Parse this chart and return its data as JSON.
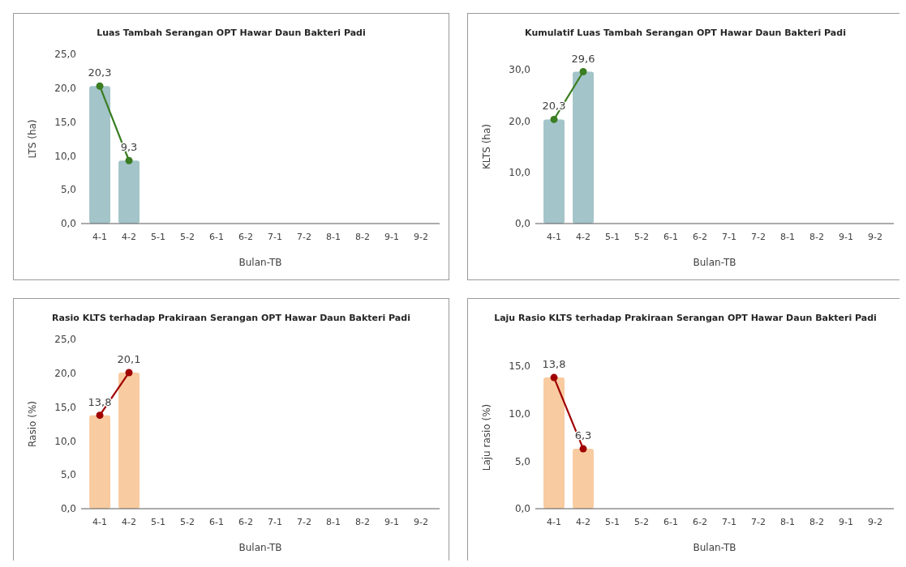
{
  "chart_data": [
    {
      "type": "bar",
      "title": "Luas Tambah Serangan OPT Hawar Daun Bakteri Padi",
      "xlabel": "Bulan-TB",
      "ylabel": "LTS (ha)",
      "categories": [
        "4-1",
        "4-2",
        "5-1",
        "5-2",
        "6-1",
        "6-2",
        "7-1",
        "7-2",
        "8-1",
        "8-2",
        "9-1",
        "9-2"
      ],
      "ylim": [
        0,
        25
      ],
      "yticks": [
        {
          "value": 0,
          "label": "0,0"
        },
        {
          "value": 5,
          "label": "5,0"
        },
        {
          "value": 10,
          "label": "10,0"
        },
        {
          "value": 15,
          "label": "15,0"
        },
        {
          "value": 20,
          "label": "20,0"
        },
        {
          "value": 25,
          "label": "25,0"
        }
      ],
      "grid": false,
      "marker": "circle",
      "series": [
        {
          "color": "#a3c4c9",
          "values": [
            20.3,
            9.3,
            null,
            null,
            null,
            null,
            null,
            null,
            null,
            null,
            null,
            null
          ]
        },
        {
          "type": "line",
          "color": "#3a7d22",
          "values": [
            20.3,
            9.3,
            null,
            null,
            null,
            null,
            null,
            null,
            null,
            null,
            null,
            null
          ],
          "value_labels": [
            "20,3",
            "9,3",
            null,
            null,
            null,
            null,
            null,
            null,
            null,
            null,
            null,
            null
          ]
        }
      ]
    },
    {
      "type": "bar",
      "title": "Kumulatif Luas Tambah Serangan OPT Hawar Daun Bakteri Padi",
      "xlabel": "Bulan-TB",
      "ylabel": "KLTS (ha)",
      "categories": [
        "4-1",
        "4-2",
        "5-1",
        "5-2",
        "6-1",
        "6-2",
        "7-1",
        "7-2",
        "8-1",
        "8-2",
        "9-1",
        "9-2"
      ],
      "ylim": [
        0,
        30
      ],
      "yticks": [
        {
          "value": 0,
          "label": "0,0"
        },
        {
          "value": 10,
          "label": "10,0"
        },
        {
          "value": 20,
          "label": "20,0"
        },
        {
          "value": 30,
          "label": "30,0"
        }
      ],
      "grid": false,
      "marker": "circle",
      "series": [
        {
          "color": "#a3c4c9",
          "values": [
            20.3,
            29.6,
            null,
            null,
            null,
            null,
            null,
            null,
            null,
            null,
            null,
            null
          ]
        },
        {
          "type": "line",
          "color": "#3a7d22",
          "values": [
            20.3,
            29.6,
            null,
            null,
            null,
            null,
            null,
            null,
            null,
            null,
            null,
            null
          ],
          "value_labels": [
            "20,3",
            "29,6",
            null,
            null,
            null,
            null,
            null,
            null,
            null,
            null,
            null,
            null
          ]
        }
      ]
    },
    {
      "type": "bar",
      "title": "Rasio KLTS terhadap Prakiraan Serangan OPT Hawar Daun Bakteri Padi",
      "xlabel": "Bulan-TB",
      "ylabel": "Rasio (%)",
      "categories": [
        "4-1",
        "4-2",
        "5-1",
        "5-2",
        "6-1",
        "6-2",
        "7-1",
        "7-2",
        "8-1",
        "8-2",
        "9-1",
        "9-2"
      ],
      "ylim": [
        0,
        25
      ],
      "yticks": [
        {
          "value": 0,
          "label": "0,0"
        },
        {
          "value": 5,
          "label": "5,0"
        },
        {
          "value": 10,
          "label": "10,0"
        },
        {
          "value": 15,
          "label": "15,0"
        },
        {
          "value": 20,
          "label": "20,0"
        },
        {
          "value": 25,
          "label": "25,0"
        }
      ],
      "grid": false,
      "marker": "circle",
      "series": [
        {
          "color": "#f8cba0",
          "values": [
            13.8,
            20.1,
            null,
            null,
            null,
            null,
            null,
            null,
            null,
            null,
            null,
            null
          ]
        },
        {
          "type": "line",
          "color": "#a00000",
          "values": [
            13.8,
            20.1,
            null,
            null,
            null,
            null,
            null,
            null,
            null,
            null,
            null,
            null
          ],
          "value_labels": [
            "13,8",
            "20,1",
            null,
            null,
            null,
            null,
            null,
            null,
            null,
            null,
            null,
            null
          ]
        }
      ]
    },
    {
      "type": "bar",
      "title": "Laju Rasio KLTS terhadap Prakiraan Serangan OPT Hawar Daun Bakteri Padi",
      "xlabel": "Bulan-TB",
      "ylabel": "Laju rasio (%)",
      "categories": [
        "4-1",
        "4-2",
        "5-1",
        "5-2",
        "6-1",
        "6-2",
        "7-1",
        "7-2",
        "8-1",
        "8-2",
        "9-1",
        "9-2"
      ],
      "ylim": [
        0,
        15
      ],
      "yticks": [
        {
          "value": 0,
          "label": "0,0"
        },
        {
          "value": 5,
          "label": "5,0"
        },
        {
          "value": 10,
          "label": "10,0"
        },
        {
          "value": 15,
          "label": "15,0"
        }
      ],
      "grid": false,
      "marker": "circle",
      "series": [
        {
          "color": "#f8cba0",
          "values": [
            13.8,
            6.3,
            null,
            null,
            null,
            null,
            null,
            null,
            null,
            null,
            null,
            null
          ]
        },
        {
          "type": "line",
          "color": "#a00000",
          "values": [
            13.8,
            6.3,
            null,
            null,
            null,
            null,
            null,
            null,
            null,
            null,
            null,
            null
          ],
          "value_labels": [
            "13,8",
            "6,3",
            null,
            null,
            null,
            null,
            null,
            null,
            null,
            null,
            null,
            null
          ]
        }
      ]
    }
  ]
}
